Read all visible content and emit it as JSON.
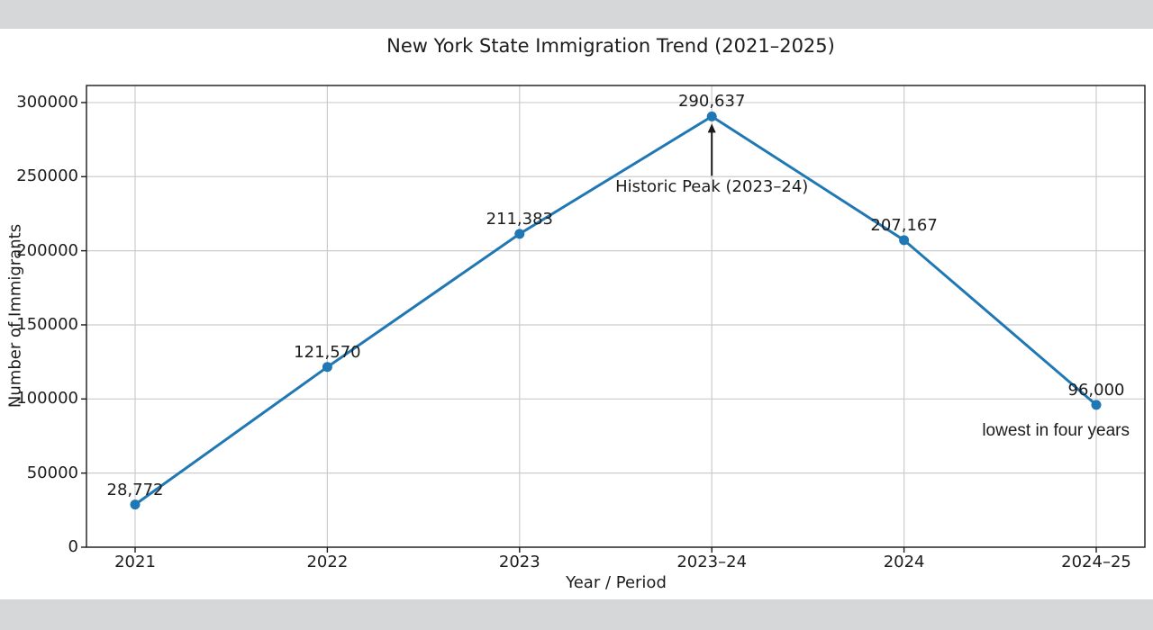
{
  "window": {
    "canvas_color": "#ffffff",
    "chrome_bar_color": "#d5d7d8"
  },
  "chart_data": {
    "type": "line",
    "title": "New York State Immigration Trend (2021–2025)",
    "xlabel": "Year / Period",
    "ylabel": "Number of Immigrants",
    "categories": [
      "2021",
      "2022",
      "2023",
      "2023–24",
      "2024",
      "2024–25"
    ],
    "series": [
      {
        "name": "Immigrants",
        "color": "#1f77b4",
        "values": [
          28772,
          121570,
          211383,
          290637,
          207167,
          96000
        ]
      }
    ],
    "point_labels": [
      "28,772",
      "121,570",
      "211,383",
      "290,637",
      "207,167",
      "96,000"
    ],
    "yticks": [
      0,
      50000,
      100000,
      150000,
      200000,
      250000,
      300000
    ],
    "ytick_labels": [
      "0",
      "50000",
      "100000",
      "150000",
      "200000",
      "250000",
      "300000"
    ],
    "ylim": [
      0,
      311500
    ],
    "grid": true,
    "legend_position": "none",
    "grid_color": "#cccccc",
    "axis_color": "#1a1a1a",
    "annotations": [
      {
        "text": "Historic Peak (2023–24)",
        "category": "2023–24",
        "style": "arrow-up-to-point"
      },
      {
        "text": "lowest in four years",
        "category": "2024–25",
        "style": "plain"
      }
    ]
  }
}
